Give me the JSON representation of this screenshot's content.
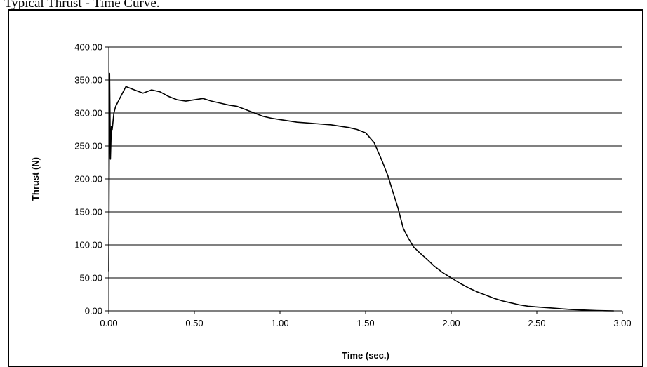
{
  "page": {
    "heading": "Typical Thrust - Time Curve."
  },
  "chart_data": {
    "type": "line",
    "title": "",
    "xlabel": "Time (sec.)",
    "ylabel": "Thrust (N)",
    "xlim": [
      0,
      3
    ],
    "ylim": [
      0,
      400
    ],
    "x_ticks": [
      "0.00",
      "0.50",
      "1.00",
      "1.50",
      "2.00",
      "2.50",
      "3.00"
    ],
    "y_ticks": [
      "0.00",
      "50.00",
      "100.00",
      "150.00",
      "200.00",
      "250.00",
      "300.00",
      "350.00",
      "400.00"
    ],
    "grid": "horizontal",
    "legend": "none",
    "line_color": "#000000",
    "series": [
      {
        "x": [
          0.0,
          0.005,
          0.01,
          0.015,
          0.02,
          0.03,
          0.04,
          0.06,
          0.08,
          0.1,
          0.12,
          0.15,
          0.2,
          0.25,
          0.3,
          0.35,
          0.4,
          0.45,
          0.5,
          0.55,
          0.6,
          0.65,
          0.7,
          0.75,
          0.8,
          0.85,
          0.9,
          0.95,
          1.0,
          1.05,
          1.1,
          1.15,
          1.2,
          1.25,
          1.3,
          1.35,
          1.4,
          1.45,
          1.5,
          1.55,
          1.6,
          1.63,
          1.66,
          1.69,
          1.72,
          1.75,
          1.78,
          1.82,
          1.86,
          1.9,
          1.95,
          2.0,
          2.05,
          2.1,
          2.15,
          2.2,
          2.25,
          2.3,
          2.35,
          2.4,
          2.45,
          2.5,
          2.55,
          2.6,
          2.65,
          2.7,
          2.75,
          2.8,
          2.85,
          2.9,
          2.95
        ],
        "y": [
          60,
          360,
          230,
          280,
          275,
          300,
          310,
          320,
          330,
          340,
          338,
          335,
          330,
          335,
          332,
          325,
          320,
          318,
          320,
          322,
          318,
          315,
          312,
          310,
          305,
          300,
          295,
          292,
          290,
          288,
          286,
          285,
          284,
          283,
          282,
          280,
          278,
          275,
          270,
          255,
          225,
          205,
          180,
          155,
          125,
          110,
          97,
          87,
          78,
          68,
          58,
          50,
          42,
          35,
          29,
          24,
          19,
          15,
          12,
          9,
          7,
          6,
          5,
          4,
          3,
          2,
          1.5,
          1,
          0.5,
          0.2,
          0
        ]
      }
    ]
  }
}
